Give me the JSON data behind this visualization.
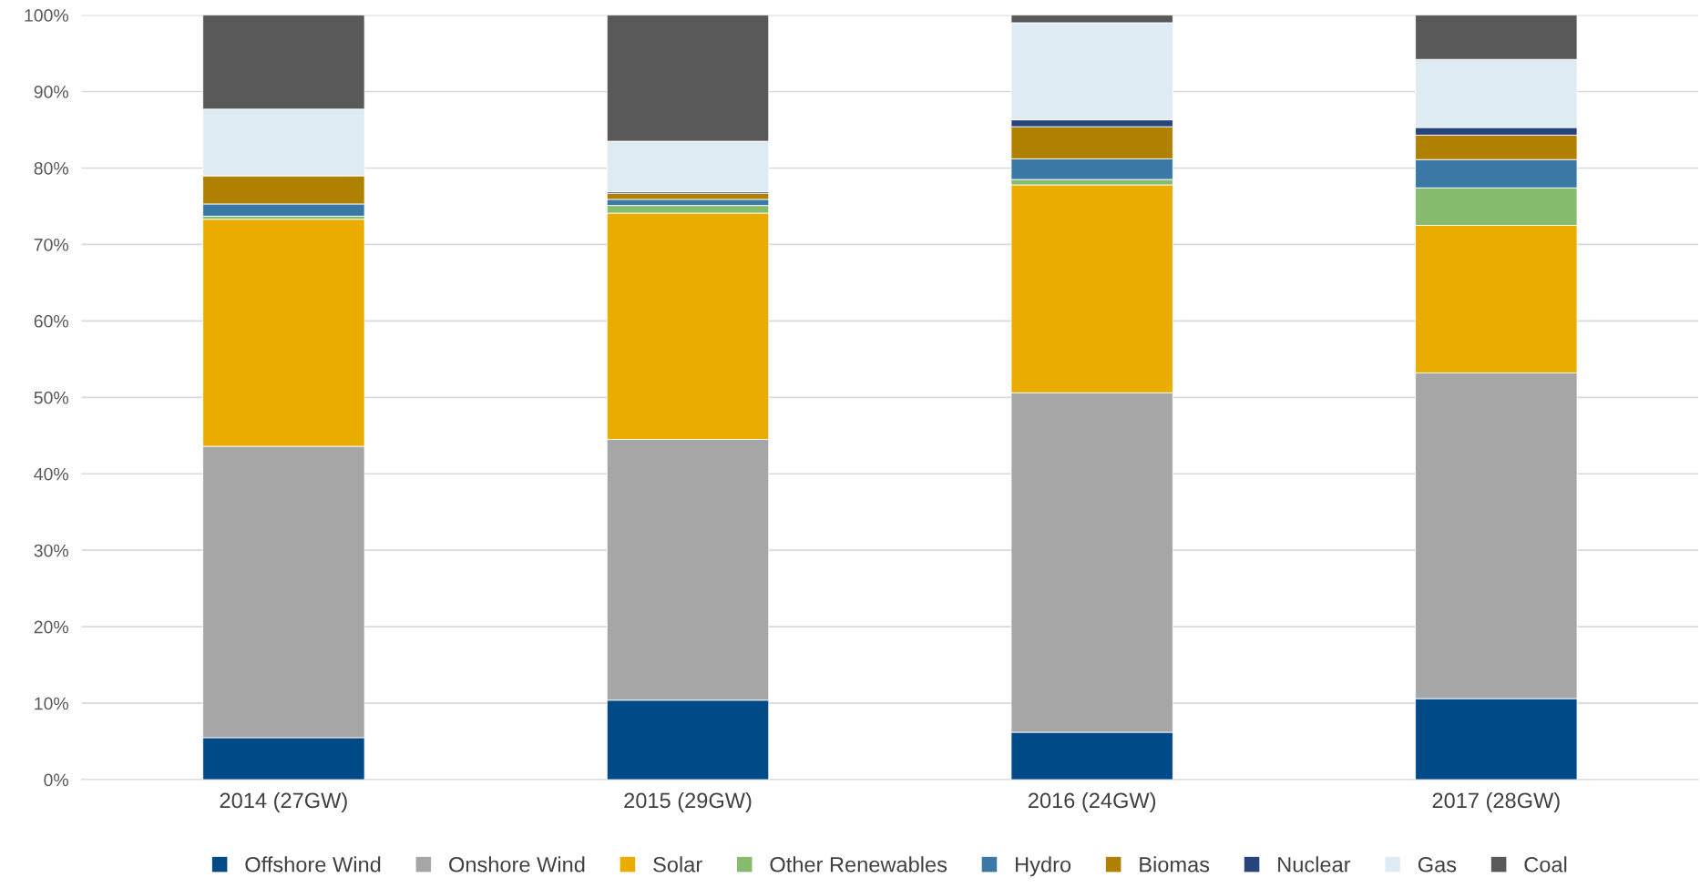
{
  "chart_data": {
    "type": "bar",
    "stacked": true,
    "categories": [
      "2014 (27GW)",
      "2015 (29GW)",
      "2016 (24GW)",
      "2017 (28GW)"
    ],
    "series": [
      {
        "name": "Offshore Wind",
        "color": "#004a87",
        "values": [
          5.5,
          10.4,
          6.2,
          10.6
        ]
      },
      {
        "name": "Onshore Wind",
        "color": "#a6a6a6",
        "values": [
          38.1,
          34.1,
          44.4,
          42.6
        ]
      },
      {
        "name": "Solar",
        "color": "#ebac00",
        "values": [
          29.7,
          29.6,
          27.2,
          19.3
        ]
      },
      {
        "name": "Other Renewables",
        "color": "#87bb6d",
        "values": [
          0.4,
          1.0,
          0.7,
          4.9
        ]
      },
      {
        "name": "Hydro",
        "color": "#3a78a6",
        "values": [
          1.6,
          0.8,
          2.7,
          3.7
        ]
      },
      {
        "name": "Biomas",
        "color": "#b08100",
        "values": [
          3.7,
          0.8,
          4.2,
          3.2
        ]
      },
      {
        "name": "Nuclear",
        "color": "#27457a",
        "values": [
          0,
          0.2,
          0.9,
          1.0
        ]
      },
      {
        "name": "Gas",
        "color": "#deebf3",
        "values": [
          8.7,
          6.6,
          12.7,
          8.9
        ]
      },
      {
        "name": "Coal",
        "color": "#595959",
        "values": [
          12.3,
          16.5,
          1.0,
          5.8
        ]
      }
    ],
    "ylim": [
      0,
      100
    ],
    "yticks": [
      {
        "value": 0,
        "label": "0%"
      },
      {
        "value": 10,
        "label": "10%"
      },
      {
        "value": 20,
        "label": "20%"
      },
      {
        "value": 30,
        "label": "30%"
      },
      {
        "value": 40,
        "label": "40%"
      },
      {
        "value": 50,
        "label": "50%"
      },
      {
        "value": 60,
        "label": "60%"
      },
      {
        "value": 70,
        "label": "70%"
      },
      {
        "value": 80,
        "label": "80%"
      },
      {
        "value": 90,
        "label": "90%"
      },
      {
        "value": 100,
        "label": "100%"
      }
    ],
    "grid": "y",
    "legend": "bottom"
  }
}
